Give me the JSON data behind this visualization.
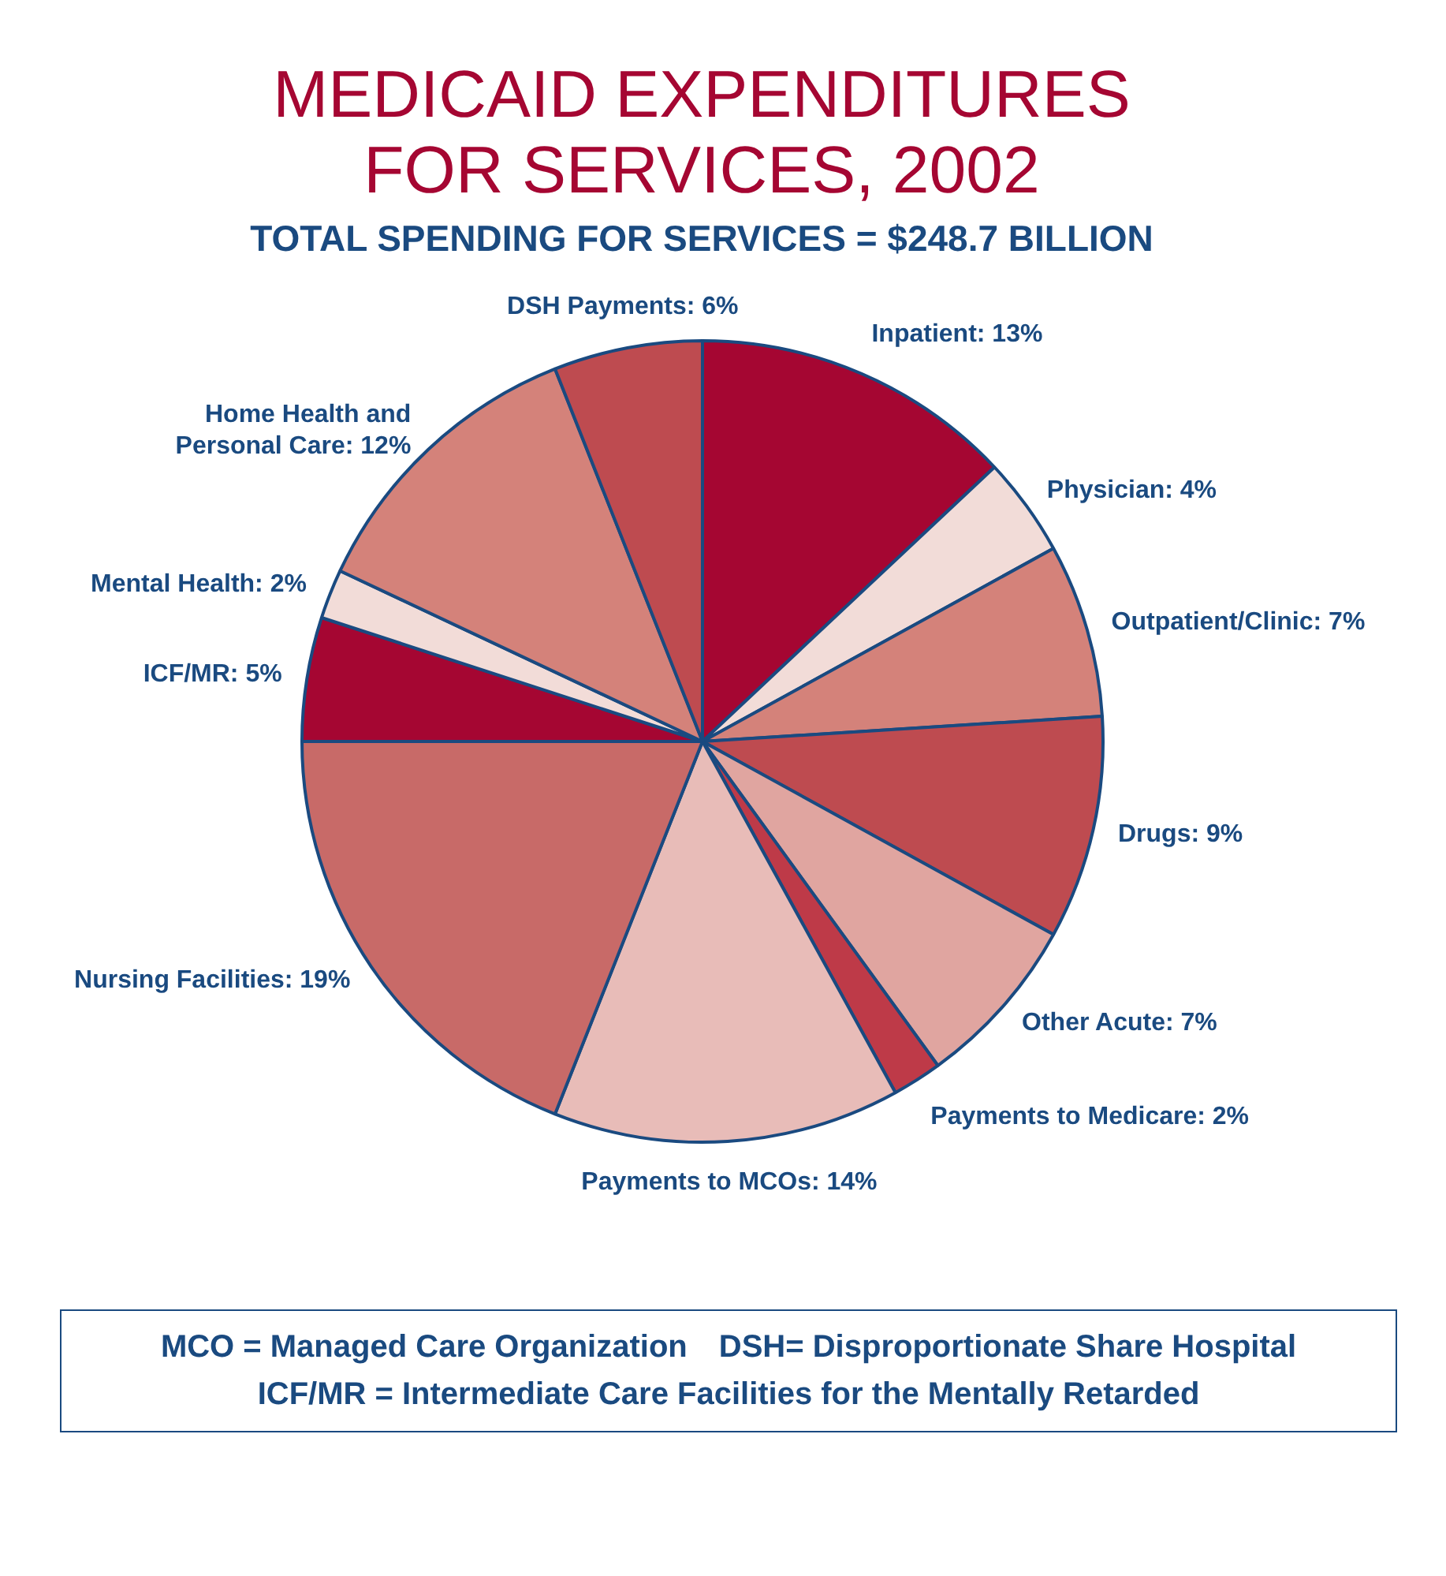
{
  "chart_data": {
    "type": "pie",
    "title": "MEDICAID EXPENDITURES FOR SERVICES, 2002",
    "subtitle": "TOTAL SPENDING FOR SERVICES = $248.7 BILLION",
    "categories": [
      "Inpatient",
      "Physician",
      "Outpatient/Clinic",
      "Drugs",
      "Other Acute",
      "Payments to Medicare",
      "Payments to MCOs",
      "Nursing Facilities",
      "ICF/MR",
      "Mental Health",
      "Home Health and Personal Care",
      "DSH Payments"
    ],
    "values": [
      13,
      4,
      7,
      9,
      7,
      2,
      14,
      19,
      5,
      2,
      12,
      6
    ],
    "value_labels": [
      "13%",
      "4%",
      "7%",
      "9%",
      "7%",
      "2%",
      "14%",
      "19%",
      "5%",
      "2%",
      "12%",
      "6%"
    ],
    "colors": [
      "#a50632",
      "#f2dcd8",
      "#d4827a",
      "#be4b50",
      "#e0a5a0",
      "#be3a48",
      "#e8bcb8",
      "#c86a68",
      "#a50632",
      "#f2dcd8",
      "#d4827a",
      "#be4b50"
    ],
    "legend": false,
    "annotations": [
      "MCO = Managed Care Organization",
      "DSH= Disproportionate Share Hospital",
      "ICF/MR = Intermediate Care Facilities for the Mentally Retarded"
    ]
  }
}
